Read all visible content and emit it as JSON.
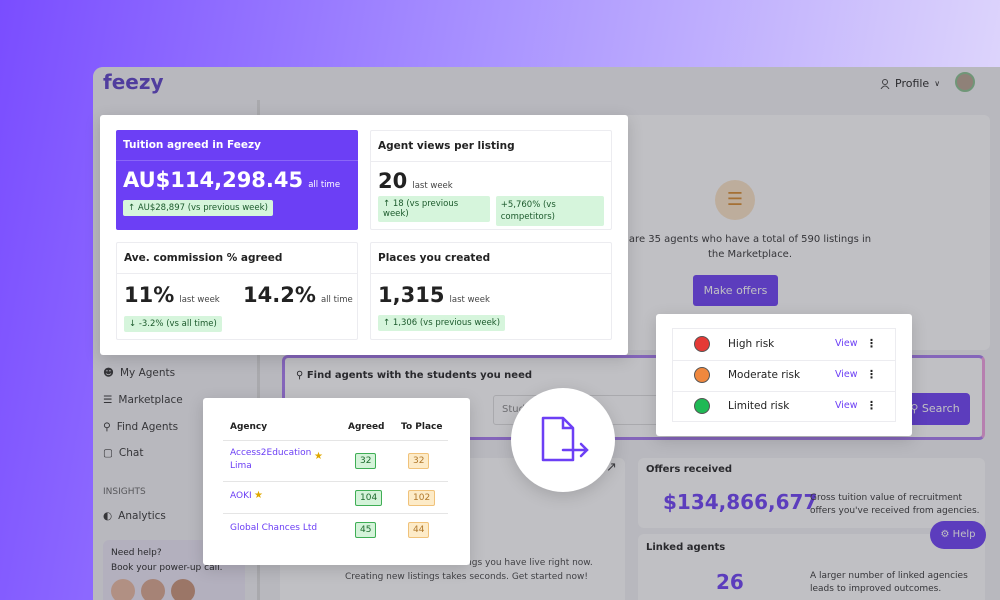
{
  "app": {
    "logo": "feezy",
    "profile": "Profile",
    "nav": [
      "My Agents",
      "Marketplace",
      "Find Agents",
      "Chat"
    ],
    "insights_label": "INSIGHTS",
    "analytics": "Analytics",
    "help_title": "Need help?",
    "help_text": "Book your power-up call.",
    "summary_text": "are 35 agents who have a total of 590 listings in the Marketplace.",
    "make_offers": "Make offers",
    "search_title": "Find agents with the students you need",
    "search_placeholder": "Stud",
    "search_button": "Search",
    "listings_text": [
      "number of recruitment listings you have live right now.",
      "Creating new listings takes seconds. Get started now!"
    ],
    "offers_title": "Offers received",
    "offers_value": "$134,866,677",
    "offers_text": "Gross tuition value of recruitment offers you've received from agencies.",
    "linked_title": "Linked agents",
    "linked_value": "26",
    "linked_text": "A larger number of linked agencies leads to improved outcomes.",
    "help_button": "Help"
  },
  "stats": {
    "tuition": {
      "title": "Tuition agreed in Feezy",
      "value": "AU$114,298.45",
      "period": "all time",
      "change": "AU$28,897 (vs previous week)"
    },
    "views": {
      "title": "Agent views per listing",
      "value": "20",
      "period": "last week",
      "change": "18 (vs previous week)",
      "change2": "+5,760% (vs competitors)"
    },
    "commission": {
      "title": "Ave. commission % agreed",
      "value": "11%",
      "period": "last week",
      "change": "-3.2% (vs all time)",
      "value2": "14.2%",
      "period2": "all time"
    },
    "places": {
      "title": "Places you created",
      "value": "1,315",
      "period": "last week",
      "change": "1,306 (vs previous week)"
    }
  },
  "risk": {
    "rows": [
      {
        "label": "High risk",
        "action": "View"
      },
      {
        "label": "Moderate risk",
        "action": "View"
      },
      {
        "label": "Limited risk",
        "action": "View"
      }
    ]
  },
  "agencies": {
    "headers": [
      "Agency",
      "Agreed",
      "To Place"
    ],
    "rows": [
      {
        "name": "Access2Education Lima",
        "agreed": "32",
        "to_place": "32"
      },
      {
        "name": "AOKI",
        "agreed": "104",
        "to_place": "102"
      },
      {
        "name": "Global Chances Ltd",
        "agreed": "45",
        "to_place": "44"
      }
    ]
  }
}
